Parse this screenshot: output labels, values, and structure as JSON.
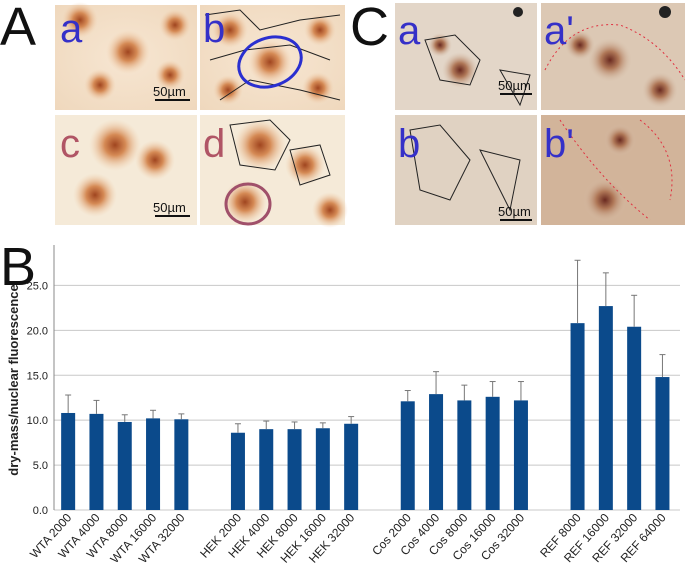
{
  "panels": {
    "A": {
      "label": "A",
      "sub": [
        "a",
        "b",
        "c",
        "d"
      ],
      "scale": [
        "50µm",
        "50µm"
      ]
    },
    "B": {
      "label": "B"
    },
    "C": {
      "label": "C",
      "sub": [
        "a",
        "a'",
        "b",
        "b'"
      ],
      "scale": [
        "50µm",
        "50µm"
      ]
    }
  },
  "chart_data": {
    "type": "bar",
    "y_label": "dry-mass/nuclear fluorescence",
    "categories": [
      "WTA 2000",
      "WTA 4000",
      "WTA 8000",
      "WTA 16000",
      "WTA 32000",
      null,
      "HEK 2000",
      "HEK 4000",
      "HEK 8000",
      "HEK 16000",
      "HEK 32000",
      null,
      "Cos 2000",
      "Cos 4000",
      "Cos 8000",
      "Cos 16000",
      "Cos 32000",
      null,
      "REF 8000",
      "REF 16000",
      "REF 32000",
      "REF 64000"
    ],
    "values": [
      10.8,
      10.7,
      9.8,
      10.2,
      10.1,
      null,
      8.6,
      9.0,
      9.0,
      9.1,
      9.6,
      null,
      12.1,
      12.9,
      12.2,
      12.6,
      12.2,
      null,
      20.8,
      22.7,
      20.4,
      14.8
    ],
    "errors": [
      2.0,
      1.5,
      0.8,
      0.9,
      0.6,
      null,
      1.0,
      0.9,
      0.8,
      0.6,
      0.8,
      null,
      1.2,
      2.5,
      1.7,
      1.7,
      2.1,
      null,
      7.0,
      3.7,
      3.5,
      2.5
    ],
    "color": "#0b4a8b",
    "ylim": [
      0,
      29.5
    ],
    "yticks": [
      {
        "value": 0,
        "label": "0.0"
      },
      {
        "value": 5,
        "label": "5.0"
      },
      {
        "value": 10,
        "label": "10.0"
      },
      {
        "value": 15,
        "label": "15.0"
      },
      {
        "value": 20,
        "label": "20.0"
      },
      {
        "value": 25,
        "label": "25.0"
      }
    ],
    "grid": true
  }
}
